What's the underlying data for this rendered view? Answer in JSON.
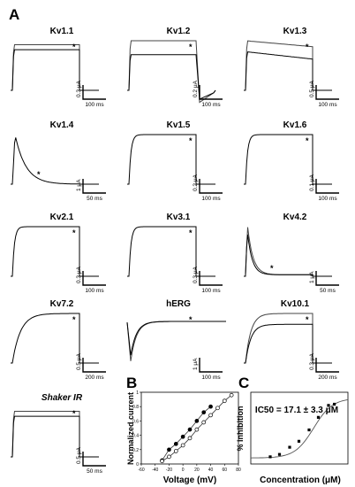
{
  "panel_labels": [
    "A",
    "B",
    "C"
  ],
  "marker": "*",
  "traces": [
    {
      "id": "kv11",
      "title": "Kv1.1",
      "kind": "pair_flat",
      "sb_i": "0.3 μA",
      "sb_t": "100 ms"
    },
    {
      "id": "kv12",
      "title": "Kv1.2",
      "kind": "pair_tail",
      "sb_i": "0.2 μA",
      "sb_t": "100 ms"
    },
    {
      "id": "kv13",
      "title": "Kv1.3",
      "kind": "pair_decay",
      "sb_i": "0.5 μA",
      "sb_t": "100 ms"
    },
    {
      "id": "kv14",
      "title": "Kv1.4",
      "kind": "inactivating",
      "sb_i": "1 μA",
      "sb_t": "50 ms"
    },
    {
      "id": "kv15",
      "title": "Kv1.5",
      "kind": "single_flat",
      "sb_i": "0.2 μA",
      "sb_t": "100 ms"
    },
    {
      "id": "kv16",
      "title": "Kv1.6",
      "kind": "single_flat",
      "sb_i": "0.1 μA",
      "sb_t": "100 ms"
    },
    {
      "id": "kv21",
      "title": "Kv2.1",
      "kind": "single_flat",
      "sb_i": "0.3 μA",
      "sb_t": "100 ms"
    },
    {
      "id": "kv31",
      "title": "Kv3.1",
      "kind": "single_flat",
      "sb_i": "0.3 μA",
      "sb_t": "100 ms"
    },
    {
      "id": "kv42",
      "title": "Kv4.2",
      "kind": "fast_inact",
      "sb_i": "1 μA",
      "sb_t": "50 ms"
    },
    {
      "id": "kv72",
      "title": "Kv7.2",
      "kind": "slow_act",
      "sb_i": "0.5 μA",
      "sb_t": "200 ms"
    },
    {
      "id": "herg",
      "title": "hERG",
      "kind": "herg",
      "sb_i": "1 μA",
      "sb_t": "100 ms"
    },
    {
      "id": "kv101",
      "title": "Kv10.1",
      "kind": "pair_slow",
      "sb_i": "0.3 μA",
      "sb_t": "200 ms"
    },
    {
      "id": "shaker",
      "title": "Shaker IR",
      "kind": "pair_flat",
      "sb_i": "0.5 μA",
      "sb_t": "50 ms"
    }
  ],
  "chart_data": [
    {
      "type": "scatter",
      "panel": "B",
      "title": "",
      "xlabel": "Voltage (mV)",
      "ylabel": "Normalized current",
      "xlim": [
        -60,
        80
      ],
      "ylim": [
        0,
        1
      ],
      "xticks": [
        -60,
        -40,
        -20,
        0,
        20,
        40,
        60,
        80
      ],
      "yticks": [
        0,
        0.2,
        0.4,
        0.6,
        0.8,
        1
      ],
      "series": [
        {
          "filled": true,
          "x": [
            -30,
            -20,
            -10,
            0,
            10,
            20,
            30,
            40
          ],
          "y": [
            0.05,
            0.2,
            0.28,
            0.38,
            0.48,
            0.6,
            0.72,
            0.8
          ]
        },
        {
          "filled": false,
          "x": [
            -30,
            -20,
            -10,
            0,
            10,
            20,
            30,
            40,
            50,
            60,
            70
          ],
          "y": [
            0.04,
            0.1,
            0.18,
            0.26,
            0.36,
            0.48,
            0.58,
            0.68,
            0.78,
            0.88,
            0.96
          ]
        }
      ]
    },
    {
      "type": "scatter",
      "panel": "C",
      "title": "IC50 = 17.1 ± 3.3 μM",
      "xlabel": "Concentration (μM)",
      "ylabel": "% inhibition",
      "xscale": "log",
      "xlim": [
        0.01,
        1000
      ],
      "ylim": [
        -10,
        110
      ],
      "x": [
        0.1,
        0.3,
        1,
        3,
        10,
        30,
        100,
        200
      ],
      "y": [
        2,
        6,
        18,
        28,
        47,
        68,
        88,
        90
      ]
    }
  ]
}
